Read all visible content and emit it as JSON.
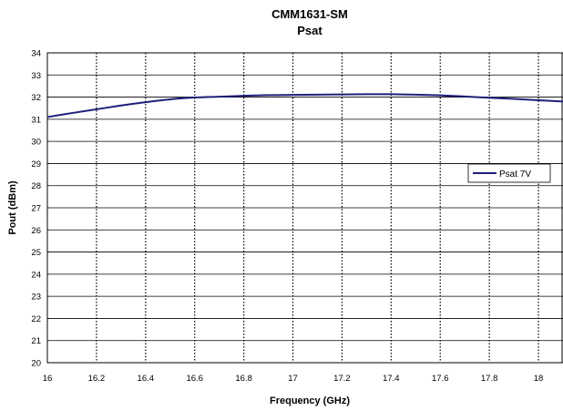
{
  "chart_data": {
    "type": "line",
    "title": "CMM1631-SM",
    "subtitle": "Psat",
    "xlabel": "Frequency (GHz)",
    "ylabel": "Pout (dBm)",
    "xlim": [
      16,
      18.1
    ],
    "ylim": [
      20,
      34
    ],
    "x_ticks": [
      "16",
      "16.2",
      "16.4",
      "16.6",
      "16.8",
      "17",
      "17.2",
      "17.4",
      "17.6",
      "17.8",
      "18"
    ],
    "y_ticks": [
      "20",
      "21",
      "22",
      "23",
      "24",
      "25",
      "26",
      "27",
      "28",
      "29",
      "30",
      "31",
      "32",
      "33",
      "34"
    ],
    "grid": "horizontal solid, vertical dotted",
    "legend_position": "right",
    "series": [
      {
        "name": "Psat 7V",
        "color": "#1f1f7a",
        "x": [
          16.0,
          16.1,
          16.2,
          16.3,
          16.4,
          16.5,
          16.6,
          16.7,
          16.8,
          16.9,
          17.0,
          17.1,
          17.2,
          17.3,
          17.4,
          17.5,
          17.6,
          17.7,
          17.8,
          17.9,
          18.0,
          18.1
        ],
        "y": [
          31.1,
          31.28,
          31.45,
          31.62,
          31.77,
          31.9,
          31.98,
          32.02,
          32.06,
          32.09,
          32.1,
          32.11,
          32.12,
          32.13,
          32.13,
          32.11,
          32.08,
          32.03,
          31.97,
          31.92,
          31.86,
          31.8
        ]
      }
    ]
  }
}
